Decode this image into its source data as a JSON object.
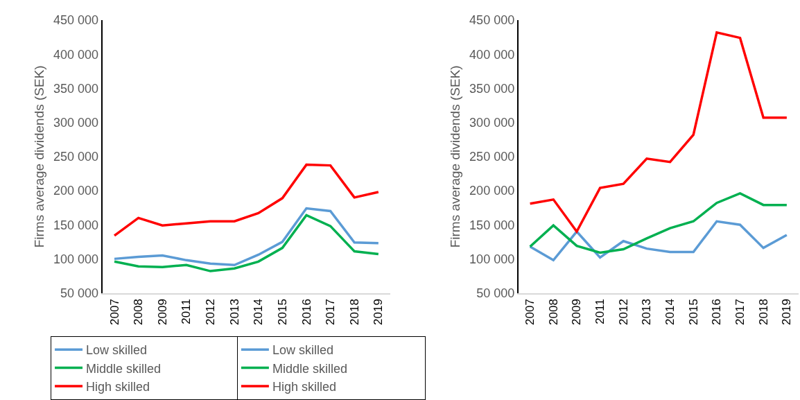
{
  "chart_data": [
    {
      "type": "line",
      "ylabel": "Firms average dividends (SEK)",
      "categories": [
        "2007",
        "2008",
        "2009",
        "2011",
        "2012",
        "2013",
        "2014",
        "2015",
        "2016",
        "2017",
        "2018",
        "2019"
      ],
      "ylim": [
        50000,
        450000
      ],
      "yticks": [
        {
          "value": 50000,
          "label": "50 000"
        },
        {
          "value": 100000,
          "label": "100 000"
        },
        {
          "value": 150000,
          "label": "150 000"
        },
        {
          "value": 200000,
          "label": "200 000"
        },
        {
          "value": 250000,
          "label": "250 000"
        },
        {
          "value": 300000,
          "label": "300 000"
        },
        {
          "value": 350000,
          "label": "350 000"
        },
        {
          "value": 400000,
          "label": "400 000"
        },
        {
          "value": 450000,
          "label": "450 000"
        }
      ],
      "grid": false,
      "legend": "bottom",
      "line_style": "solid",
      "marker": "none",
      "series": [
        {
          "name": "Low skilled",
          "color": "#5b9bd5",
          "values": [
            100000,
            103000,
            105000,
            98000,
            93000,
            91000,
            106000,
            125000,
            174000,
            170000,
            124000,
            123000
          ]
        },
        {
          "name": "Middle skilled",
          "color": "#00b050",
          "values": [
            96000,
            89000,
            88000,
            91000,
            82000,
            86000,
            96000,
            116000,
            164000,
            148000,
            111000,
            107000
          ]
        },
        {
          "name": "High skilled",
          "color": "#ff0000",
          "values": [
            134000,
            160000,
            149000,
            152000,
            155000,
            155000,
            167000,
            189000,
            238000,
            237000,
            190000,
            198000
          ]
        }
      ]
    },
    {
      "type": "line",
      "ylabel": "Firms average dividends (SEK)",
      "categories": [
        "2007",
        "2008",
        "2009",
        "2011",
        "2012",
        "2013",
        "2014",
        "2015",
        "2016",
        "2017",
        "2018",
        "2019"
      ],
      "ylim": [
        50000,
        450000
      ],
      "yticks": [
        {
          "value": 50000,
          "label": "50 000"
        },
        {
          "value": 100000,
          "label": "100 000"
        },
        {
          "value": 150000,
          "label": "150 000"
        },
        {
          "value": 200000,
          "label": "200 000"
        },
        {
          "value": 250000,
          "label": "250 000"
        },
        {
          "value": 300000,
          "label": "300 000"
        },
        {
          "value": 350000,
          "label": "350 000"
        },
        {
          "value": 400000,
          "label": "400 000"
        },
        {
          "value": 450000,
          "label": "450 000"
        }
      ],
      "grid": false,
      "legend": "bottom",
      "line_style": "solid",
      "marker": "none",
      "series": [
        {
          "name": "Low skilled",
          "color": "#5b9bd5",
          "values": [
            118000,
            98000,
            140000,
            102000,
            126000,
            115000,
            110000,
            110000,
            155000,
            150000,
            116000,
            135000
          ]
        },
        {
          "name": "Middle skilled",
          "color": "#00b050",
          "values": [
            118000,
            149000,
            119000,
            109000,
            114000,
            130000,
            145000,
            155000,
            182000,
            196000,
            179000,
            179000
          ]
        },
        {
          "name": "High skilled",
          "color": "#ff0000",
          "values": [
            181000,
            187000,
            140000,
            204000,
            210000,
            247000,
            242000,
            282000,
            432000,
            424000,
            307000,
            307000
          ]
        }
      ]
    }
  ]
}
